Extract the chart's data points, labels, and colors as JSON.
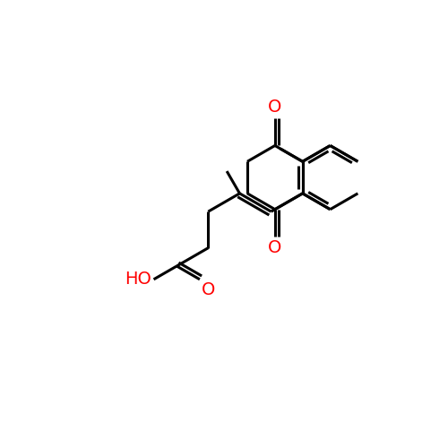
{
  "background_color": "#ffffff",
  "bond_color": "#000000",
  "heteroatom_color": "#ff0000",
  "bond_width": 2.2,
  "font_size_label": 14,
  "figsize": [
    5.0,
    5.0
  ],
  "dpi": 100,
  "xlim": [
    0,
    10
  ],
  "ylim": [
    0,
    10
  ]
}
